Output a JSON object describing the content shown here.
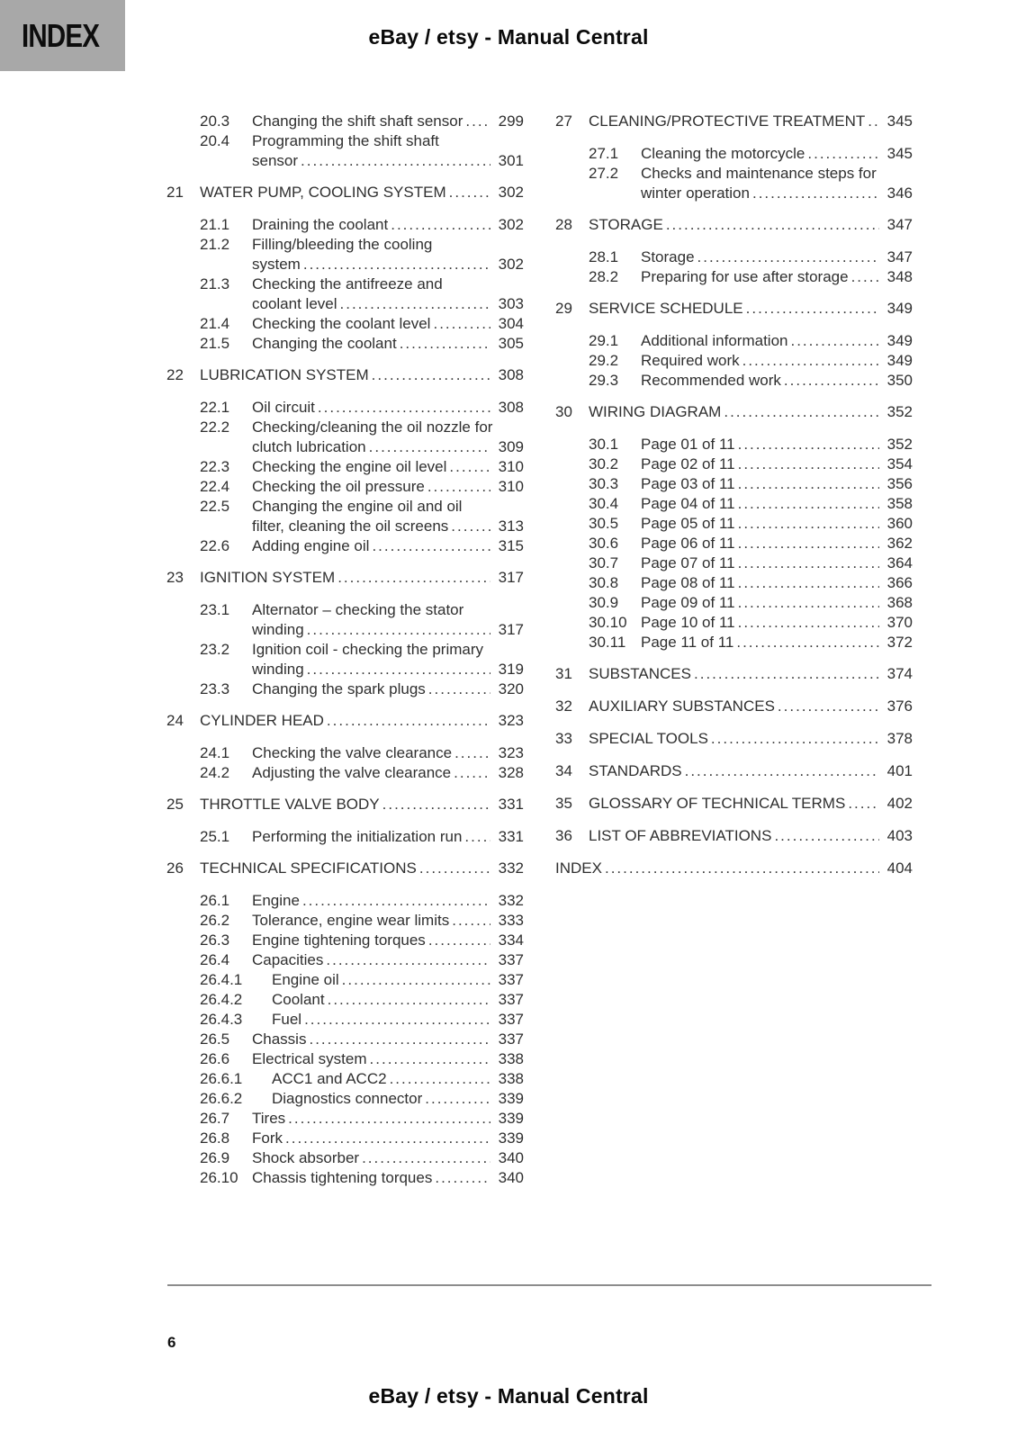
{
  "page": {
    "index_label": "INDEX",
    "header_title": "eBay / etsy - Manual Central",
    "footer_title": "eBay / etsy - Manual Central",
    "page_number": "6"
  },
  "colors": {
    "text": "#2f2f2f",
    "tab_background": "#a8a8a8",
    "divider": "#8c8c8c",
    "title_text": "#0a0a0a"
  },
  "toc": {
    "left_column": [
      {
        "num": "",
        "title": "",
        "page": "",
        "entries": [
          {
            "num": "20.3",
            "lines": [
              "Changing the shift shaft sensor"
            ],
            "page": "299"
          },
          {
            "num": "20.4",
            "lines": [
              "Programming the shift shaft",
              "sensor"
            ],
            "page": "301"
          }
        ]
      },
      {
        "num": "21",
        "title": "WATER PUMP, COOLING SYSTEM",
        "page": "302",
        "entries": [
          {
            "num": "21.1",
            "lines": [
              "Draining the coolant"
            ],
            "page": "302"
          },
          {
            "num": "21.2",
            "lines": [
              "Filling/bleeding the cooling",
              "system"
            ],
            "page": "302"
          },
          {
            "num": "21.3",
            "lines": [
              "Checking the antifreeze and",
              "coolant level"
            ],
            "page": "303"
          },
          {
            "num": "21.4",
            "lines": [
              "Checking the coolant level"
            ],
            "page": "304"
          },
          {
            "num": "21.5",
            "lines": [
              "Changing the coolant"
            ],
            "page": "305"
          }
        ]
      },
      {
        "num": "22",
        "title": "LUBRICATION SYSTEM",
        "page": "308",
        "entries": [
          {
            "num": "22.1",
            "lines": [
              "Oil circuit"
            ],
            "page": "308"
          },
          {
            "num": "22.2",
            "lines": [
              "Checking/cleaning the oil nozzle for",
              "clutch lubrication"
            ],
            "page": "309"
          },
          {
            "num": "22.3",
            "lines": [
              "Checking the engine oil level"
            ],
            "page": "310"
          },
          {
            "num": "22.4",
            "lines": [
              "Checking the oil pressure"
            ],
            "page": "310"
          },
          {
            "num": "22.5",
            "lines": [
              "Changing the engine oil and oil",
              "filter, cleaning the oil screens"
            ],
            "page": "313"
          },
          {
            "num": "22.6",
            "lines": [
              "Adding engine oil"
            ],
            "page": "315"
          }
        ]
      },
      {
        "num": "23",
        "title": "IGNITION SYSTEM",
        "page": "317",
        "entries": [
          {
            "num": "23.1",
            "lines": [
              "Alternator – checking the stator",
              "winding"
            ],
            "page": "317"
          },
          {
            "num": "23.2",
            "lines": [
              "Ignition coil - checking the primary",
              "winding"
            ],
            "page": "319"
          },
          {
            "num": "23.3",
            "lines": [
              "Changing the spark plugs"
            ],
            "page": "320"
          }
        ]
      },
      {
        "num": "24",
        "title": "CYLINDER HEAD",
        "page": "323",
        "entries": [
          {
            "num": "24.1",
            "lines": [
              "Checking the valve clearance"
            ],
            "page": "323"
          },
          {
            "num": "24.2",
            "lines": [
              "Adjusting the valve clearance"
            ],
            "page": "328"
          }
        ]
      },
      {
        "num": "25",
        "title": "THROTTLE VALVE BODY",
        "page": "331",
        "entries": [
          {
            "num": "25.1",
            "lines": [
              "Performing the initialization run"
            ],
            "page": "331"
          }
        ]
      },
      {
        "num": "26",
        "title": "TECHNICAL SPECIFICATIONS",
        "page": "332",
        "entries": [
          {
            "num": "26.1",
            "lines": [
              "Engine"
            ],
            "page": "332"
          },
          {
            "num": "26.2",
            "lines": [
              "Tolerance, engine wear limits"
            ],
            "page": "333"
          },
          {
            "num": "26.3",
            "lines": [
              "Engine tightening torques"
            ],
            "page": "334"
          },
          {
            "num": "26.4",
            "lines": [
              "Capacities"
            ],
            "page": "337"
          },
          {
            "num": "26.4.1",
            "lines": [
              "Engine oil"
            ],
            "page": "337",
            "indent": true
          },
          {
            "num": "26.4.2",
            "lines": [
              "Coolant"
            ],
            "page": "337",
            "indent": true
          },
          {
            "num": "26.4.3",
            "lines": [
              "Fuel"
            ],
            "page": "337",
            "indent": true
          },
          {
            "num": "26.5",
            "lines": [
              "Chassis"
            ],
            "page": "337"
          },
          {
            "num": "26.6",
            "lines": [
              "Electrical system"
            ],
            "page": "338"
          },
          {
            "num": "26.6.1",
            "lines": [
              "ACC1 and ACC2"
            ],
            "page": "338",
            "indent": true
          },
          {
            "num": "26.6.2",
            "lines": [
              "Diagnostics connector"
            ],
            "page": "339",
            "indent": true
          },
          {
            "num": "26.7",
            "lines": [
              "Tires"
            ],
            "page": "339"
          },
          {
            "num": "26.8",
            "lines": [
              "Fork"
            ],
            "page": "339"
          },
          {
            "num": "26.9",
            "lines": [
              "Shock absorber"
            ],
            "page": "340"
          },
          {
            "num": "26.10",
            "lines": [
              "Chassis tightening torques"
            ],
            "page": "340"
          }
        ]
      }
    ],
    "right_column": [
      {
        "num": "27",
        "title": "CLEANING/PROTECTIVE TREATMENT",
        "page": "345",
        "entries": [
          {
            "num": "27.1",
            "lines": [
              "Cleaning the motorcycle"
            ],
            "page": "345"
          },
          {
            "num": "27.2",
            "lines": [
              "Checks and maintenance steps for",
              "winter operation"
            ],
            "page": "346"
          }
        ]
      },
      {
        "num": "28",
        "title": "STORAGE",
        "page": "347",
        "entries": [
          {
            "num": "28.1",
            "lines": [
              "Storage"
            ],
            "page": "347"
          },
          {
            "num": "28.2",
            "lines": [
              "Preparing for use after storage"
            ],
            "page": "348"
          }
        ]
      },
      {
        "num": "29",
        "title": "SERVICE SCHEDULE",
        "page": "349",
        "entries": [
          {
            "num": "29.1",
            "lines": [
              "Additional information"
            ],
            "page": "349"
          },
          {
            "num": "29.2",
            "lines": [
              "Required work"
            ],
            "page": "349"
          },
          {
            "num": "29.3",
            "lines": [
              "Recommended work"
            ],
            "page": "350"
          }
        ]
      },
      {
        "num": "30",
        "title": "WIRING DIAGRAM",
        "page": "352",
        "entries": [
          {
            "num": "30.1",
            "lines": [
              "Page 01 of 11"
            ],
            "page": "352"
          },
          {
            "num": "30.2",
            "lines": [
              "Page 02 of 11"
            ],
            "page": "354"
          },
          {
            "num": "30.3",
            "lines": [
              "Page 03 of 11"
            ],
            "page": "356"
          },
          {
            "num": "30.4",
            "lines": [
              "Page 04 of 11"
            ],
            "page": "358"
          },
          {
            "num": "30.5",
            "lines": [
              "Page 05 of 11"
            ],
            "page": "360"
          },
          {
            "num": "30.6",
            "lines": [
              "Page 06 of 11"
            ],
            "page": "362"
          },
          {
            "num": "30.7",
            "lines": [
              "Page 07 of 11"
            ],
            "page": "364"
          },
          {
            "num": "30.8",
            "lines": [
              "Page 08 of 11"
            ],
            "page": "366"
          },
          {
            "num": "30.9",
            "lines": [
              "Page 09 of 11"
            ],
            "page": "368"
          },
          {
            "num": "30.10",
            "lines": [
              "Page 10 of 11"
            ],
            "page": "370"
          },
          {
            "num": "30.11",
            "lines": [
              "Page 11 of 11"
            ],
            "page": "372"
          }
        ]
      },
      {
        "num": "31",
        "title": "SUBSTANCES",
        "page": "374",
        "entries": []
      },
      {
        "num": "32",
        "title": "AUXILIARY SUBSTANCES",
        "page": "376",
        "entries": []
      },
      {
        "num": "33",
        "title": "SPECIAL TOOLS",
        "page": "378",
        "entries": []
      },
      {
        "num": "34",
        "title": "STANDARDS",
        "page": "401",
        "entries": []
      },
      {
        "num": "35",
        "title": "GLOSSARY OF TECHNICAL TERMS",
        "page": "402",
        "entries": []
      },
      {
        "num": "36",
        "title": "LIST OF ABBREVIATIONS",
        "page": "403",
        "entries": []
      },
      {
        "num": "",
        "title": "INDEX",
        "page": "404",
        "entries": []
      }
    ]
  }
}
